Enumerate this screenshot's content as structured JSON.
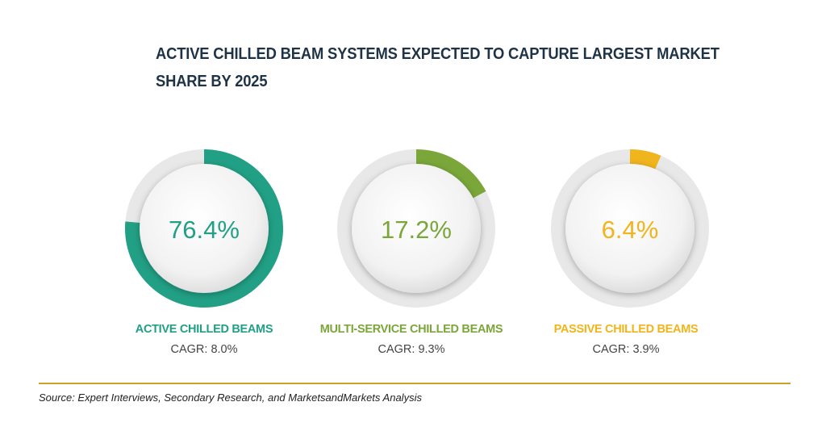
{
  "title_line1": "ACTIVE CHILLED BEAM SYSTEMS EXPECTED TO CAPTURE LARGEST MARKET",
  "title_line2": "SHARE BY 2025",
  "chart_data": {
    "type": "pie",
    "categories": [
      "ACTIVE CHILLED BEAMS",
      "MULTI-SERVICE CHILLED BEAMS",
      "PASSIVE CHILLED BEAMS"
    ],
    "values": [
      76.4,
      17.2,
      6.4
    ],
    "value_labels": [
      "76.4%",
      "17.2%",
      "6.4%"
    ],
    "cagr_labels": [
      "CAGR: 8.0%",
      "CAGR: 9.3%",
      "CAGR: 3.9%"
    ],
    "colors": [
      "#21a085",
      "#7aa63a",
      "#f0b41d"
    ],
    "track_color": "#e8e8e8"
  },
  "source": "Source: Expert Interviews, Secondary Research, and MarketsandMarkets Analysis"
}
